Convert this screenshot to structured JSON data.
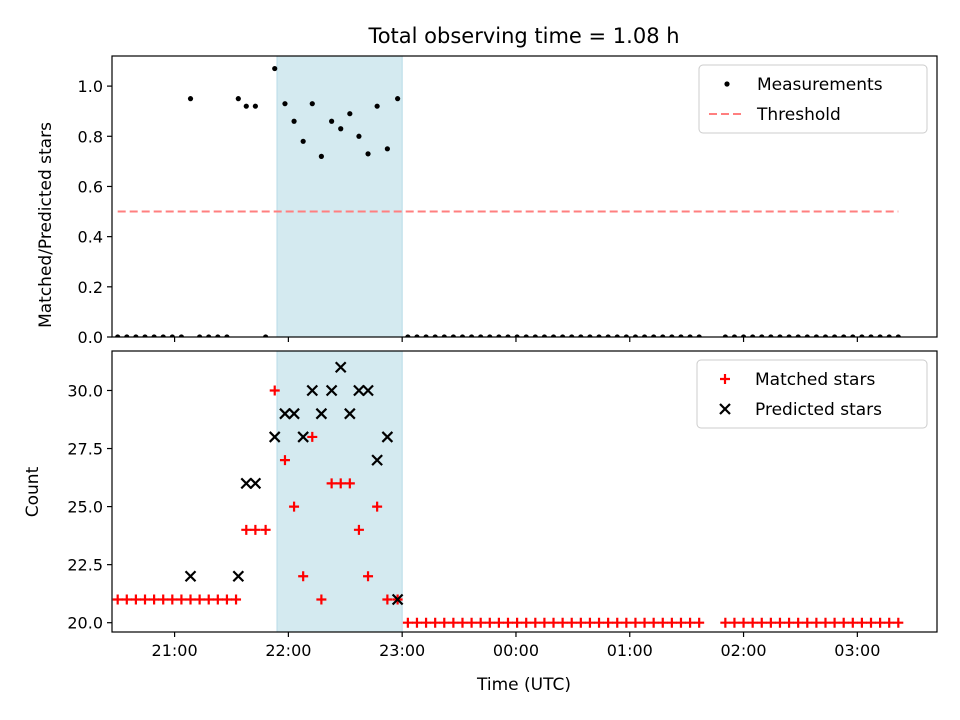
{
  "figure": {
    "title": "Total observing time = 1.08 h"
  },
  "chart_data": [
    {
      "type": "scatter",
      "title": "Total observing time = 1.08 h",
      "xlabel": "",
      "ylabel": "Matched/Predicted stars",
      "xlim": [
        -3.55,
        3.7
      ],
      "ylim": [
        0.0,
        1.12
      ],
      "yticks": [
        0.0,
        0.2,
        0.4,
        0.6,
        0.8,
        1.0
      ],
      "ytick_labels": [
        "0.0",
        "0.2",
        "0.4",
        "0.6",
        "0.8",
        "1.0"
      ],
      "xticks": [
        -3,
        -2,
        -1,
        0,
        1,
        2,
        3
      ],
      "show_xtick_labels": false,
      "highlight_span": {
        "x0": -2.1,
        "x1": -1.0,
        "color": "#d4eaf0"
      },
      "legend_position": "top-right",
      "series": [
        {
          "name": "Measurements",
          "kind": "dots",
          "color": "#000000",
          "points": [
            [
              -3.5,
              0
            ],
            [
              -3.42,
              0
            ],
            [
              -3.34,
              0
            ],
            [
              -3.26,
              0
            ],
            [
              -3.18,
              0
            ],
            [
              -3.1,
              0
            ],
            [
              -3.02,
              0
            ],
            [
              -2.94,
              0
            ],
            [
              -2.86,
              0.95
            ],
            [
              -2.78,
              0
            ],
            [
              -2.7,
              0
            ],
            [
              -2.62,
              0
            ],
            [
              -2.54,
              0
            ],
            [
              -2.44,
              0.95
            ],
            [
              -2.37,
              0.92
            ],
            [
              -2.29,
              0.92
            ],
            [
              -2.2,
              0
            ],
            [
              -2.12,
              1.07
            ],
            [
              -2.03,
              0.93
            ],
            [
              -1.95,
              0.86
            ],
            [
              -1.87,
              0.78
            ],
            [
              -1.79,
              0.93
            ],
            [
              -1.71,
              0.72
            ],
            [
              -1.62,
              0.86
            ],
            [
              -1.54,
              0.83
            ],
            [
              -1.46,
              0.89
            ],
            [
              -1.38,
              0.8
            ],
            [
              -1.3,
              0.73
            ],
            [
              -1.22,
              0.92
            ],
            [
              -1.13,
              0.75
            ],
            [
              -1.04,
              0.95
            ],
            [
              -0.95,
              0
            ],
            [
              -0.87,
              0
            ],
            [
              -0.79,
              0
            ],
            [
              -0.71,
              0
            ],
            [
              -0.63,
              0
            ],
            [
              -0.55,
              0
            ],
            [
              -0.47,
              0
            ],
            [
              -0.39,
              0
            ],
            [
              -0.31,
              0
            ],
            [
              -0.23,
              0
            ],
            [
              -0.15,
              0
            ],
            [
              -0.07,
              0
            ],
            [
              0.01,
              0
            ],
            [
              0.09,
              0
            ],
            [
              0.17,
              0
            ],
            [
              0.25,
              0
            ],
            [
              0.33,
              0
            ],
            [
              0.41,
              0
            ],
            [
              0.49,
              0
            ],
            [
              0.57,
              0
            ],
            [
              0.65,
              0
            ],
            [
              0.73,
              0
            ],
            [
              0.81,
              0
            ],
            [
              0.89,
              0
            ],
            [
              0.97,
              0
            ],
            [
              1.05,
              0
            ],
            [
              1.13,
              0
            ],
            [
              1.21,
              0
            ],
            [
              1.29,
              0
            ],
            [
              1.37,
              0
            ],
            [
              1.45,
              0
            ],
            [
              1.53,
              0
            ],
            [
              1.61,
              0
            ],
            [
              1.84,
              0
            ],
            [
              1.92,
              0
            ],
            [
              2.0,
              0
            ],
            [
              2.08,
              0
            ],
            [
              2.16,
              0
            ],
            [
              2.24,
              0
            ],
            [
              2.32,
              0
            ],
            [
              2.4,
              0
            ],
            [
              2.48,
              0
            ],
            [
              2.56,
              0
            ],
            [
              2.64,
              0
            ],
            [
              2.72,
              0
            ],
            [
              2.8,
              0
            ],
            [
              2.88,
              0
            ],
            [
              2.96,
              0
            ],
            [
              3.04,
              0
            ],
            [
              3.12,
              0
            ],
            [
              3.2,
              0
            ],
            [
              3.28,
              0
            ],
            [
              3.36,
              0
            ]
          ]
        },
        {
          "name": "Threshold",
          "kind": "dashed-line",
          "color": "#ff7f7f",
          "points": [
            [
              -3.5,
              0.5
            ],
            [
              3.36,
              0.5
            ]
          ]
        }
      ]
    },
    {
      "type": "scatter",
      "xlabel": "Time (UTC)",
      "ylabel": "Count",
      "xlim": [
        -3.55,
        3.7
      ],
      "ylim": [
        19.6,
        31.7
      ],
      "yticks": [
        20.0,
        22.5,
        25.0,
        27.5,
        30.0
      ],
      "ytick_labels": [
        "20.0",
        "22.5",
        "25.0",
        "27.5",
        "30.0"
      ],
      "xticks": [
        -3,
        -2,
        -1,
        0,
        1,
        2,
        3
      ],
      "xtick_labels": [
        "21:00",
        "22:00",
        "23:00",
        "00:00",
        "01:00",
        "02:00",
        "03:00"
      ],
      "highlight_span": {
        "x0": -2.1,
        "x1": -1.0,
        "color": "#d4eaf0"
      },
      "legend_position": "top-right",
      "series": [
        {
          "name": "Matched stars",
          "kind": "plus",
          "color": "#ff0000",
          "points": [
            [
              -3.5,
              21
            ],
            [
              -3.42,
              21
            ],
            [
              -3.34,
              21
            ],
            [
              -3.26,
              21
            ],
            [
              -3.18,
              21
            ],
            [
              -3.1,
              21
            ],
            [
              -3.02,
              21
            ],
            [
              -2.94,
              21
            ],
            [
              -2.86,
              21
            ],
            [
              -2.78,
              21
            ],
            [
              -2.7,
              21
            ],
            [
              -2.62,
              21
            ],
            [
              -2.54,
              21
            ],
            [
              -2.46,
              21
            ],
            [
              -2.37,
              24
            ],
            [
              -2.29,
              24
            ],
            [
              -2.2,
              24
            ],
            [
              -2.12,
              30
            ],
            [
              -2.03,
              27
            ],
            [
              -1.95,
              25
            ],
            [
              -1.87,
              22
            ],
            [
              -1.79,
              28
            ],
            [
              -1.71,
              21
            ],
            [
              -1.62,
              26
            ],
            [
              -1.54,
              26
            ],
            [
              -1.46,
              26
            ],
            [
              -1.38,
              24
            ],
            [
              -1.3,
              22
            ],
            [
              -1.22,
              25
            ],
            [
              -1.13,
              21
            ],
            [
              -1.04,
              21
            ],
            [
              -0.95,
              20
            ],
            [
              -0.87,
              20
            ],
            [
              -0.79,
              20
            ],
            [
              -0.71,
              20
            ],
            [
              -0.63,
              20
            ],
            [
              -0.55,
              20
            ],
            [
              -0.47,
              20
            ],
            [
              -0.39,
              20
            ],
            [
              -0.31,
              20
            ],
            [
              -0.23,
              20
            ],
            [
              -0.15,
              20
            ],
            [
              -0.07,
              20
            ],
            [
              0.01,
              20
            ],
            [
              0.09,
              20
            ],
            [
              0.17,
              20
            ],
            [
              0.25,
              20
            ],
            [
              0.33,
              20
            ],
            [
              0.41,
              20
            ],
            [
              0.49,
              20
            ],
            [
              0.57,
              20
            ],
            [
              0.65,
              20
            ],
            [
              0.73,
              20
            ],
            [
              0.81,
              20
            ],
            [
              0.89,
              20
            ],
            [
              0.97,
              20
            ],
            [
              1.05,
              20
            ],
            [
              1.13,
              20
            ],
            [
              1.21,
              20
            ],
            [
              1.29,
              20
            ],
            [
              1.37,
              20
            ],
            [
              1.45,
              20
            ],
            [
              1.53,
              20
            ],
            [
              1.61,
              20
            ],
            [
              1.84,
              20
            ],
            [
              1.92,
              20
            ],
            [
              2.0,
              20
            ],
            [
              2.08,
              20
            ],
            [
              2.16,
              20
            ],
            [
              2.24,
              20
            ],
            [
              2.32,
              20
            ],
            [
              2.4,
              20
            ],
            [
              2.48,
              20
            ],
            [
              2.56,
              20
            ],
            [
              2.64,
              20
            ],
            [
              2.72,
              20
            ],
            [
              2.8,
              20
            ],
            [
              2.88,
              20
            ],
            [
              2.96,
              20
            ],
            [
              3.04,
              20
            ],
            [
              3.12,
              20
            ],
            [
              3.2,
              20
            ],
            [
              3.28,
              20
            ],
            [
              3.36,
              20
            ]
          ]
        },
        {
          "name": "Predicted stars",
          "kind": "cross",
          "color": "#000000",
          "points": [
            [
              -2.86,
              22
            ],
            [
              -2.44,
              22
            ],
            [
              -2.37,
              26
            ],
            [
              -2.29,
              26
            ],
            [
              -2.12,
              28
            ],
            [
              -2.03,
              29
            ],
            [
              -1.95,
              29
            ],
            [
              -1.87,
              28
            ],
            [
              -1.79,
              30
            ],
            [
              -1.71,
              29
            ],
            [
              -1.62,
              30
            ],
            [
              -1.54,
              31
            ],
            [
              -1.46,
              29
            ],
            [
              -1.38,
              30
            ],
            [
              -1.3,
              30
            ],
            [
              -1.22,
              27
            ],
            [
              -1.13,
              28
            ],
            [
              -1.04,
              21
            ]
          ]
        }
      ]
    }
  ]
}
